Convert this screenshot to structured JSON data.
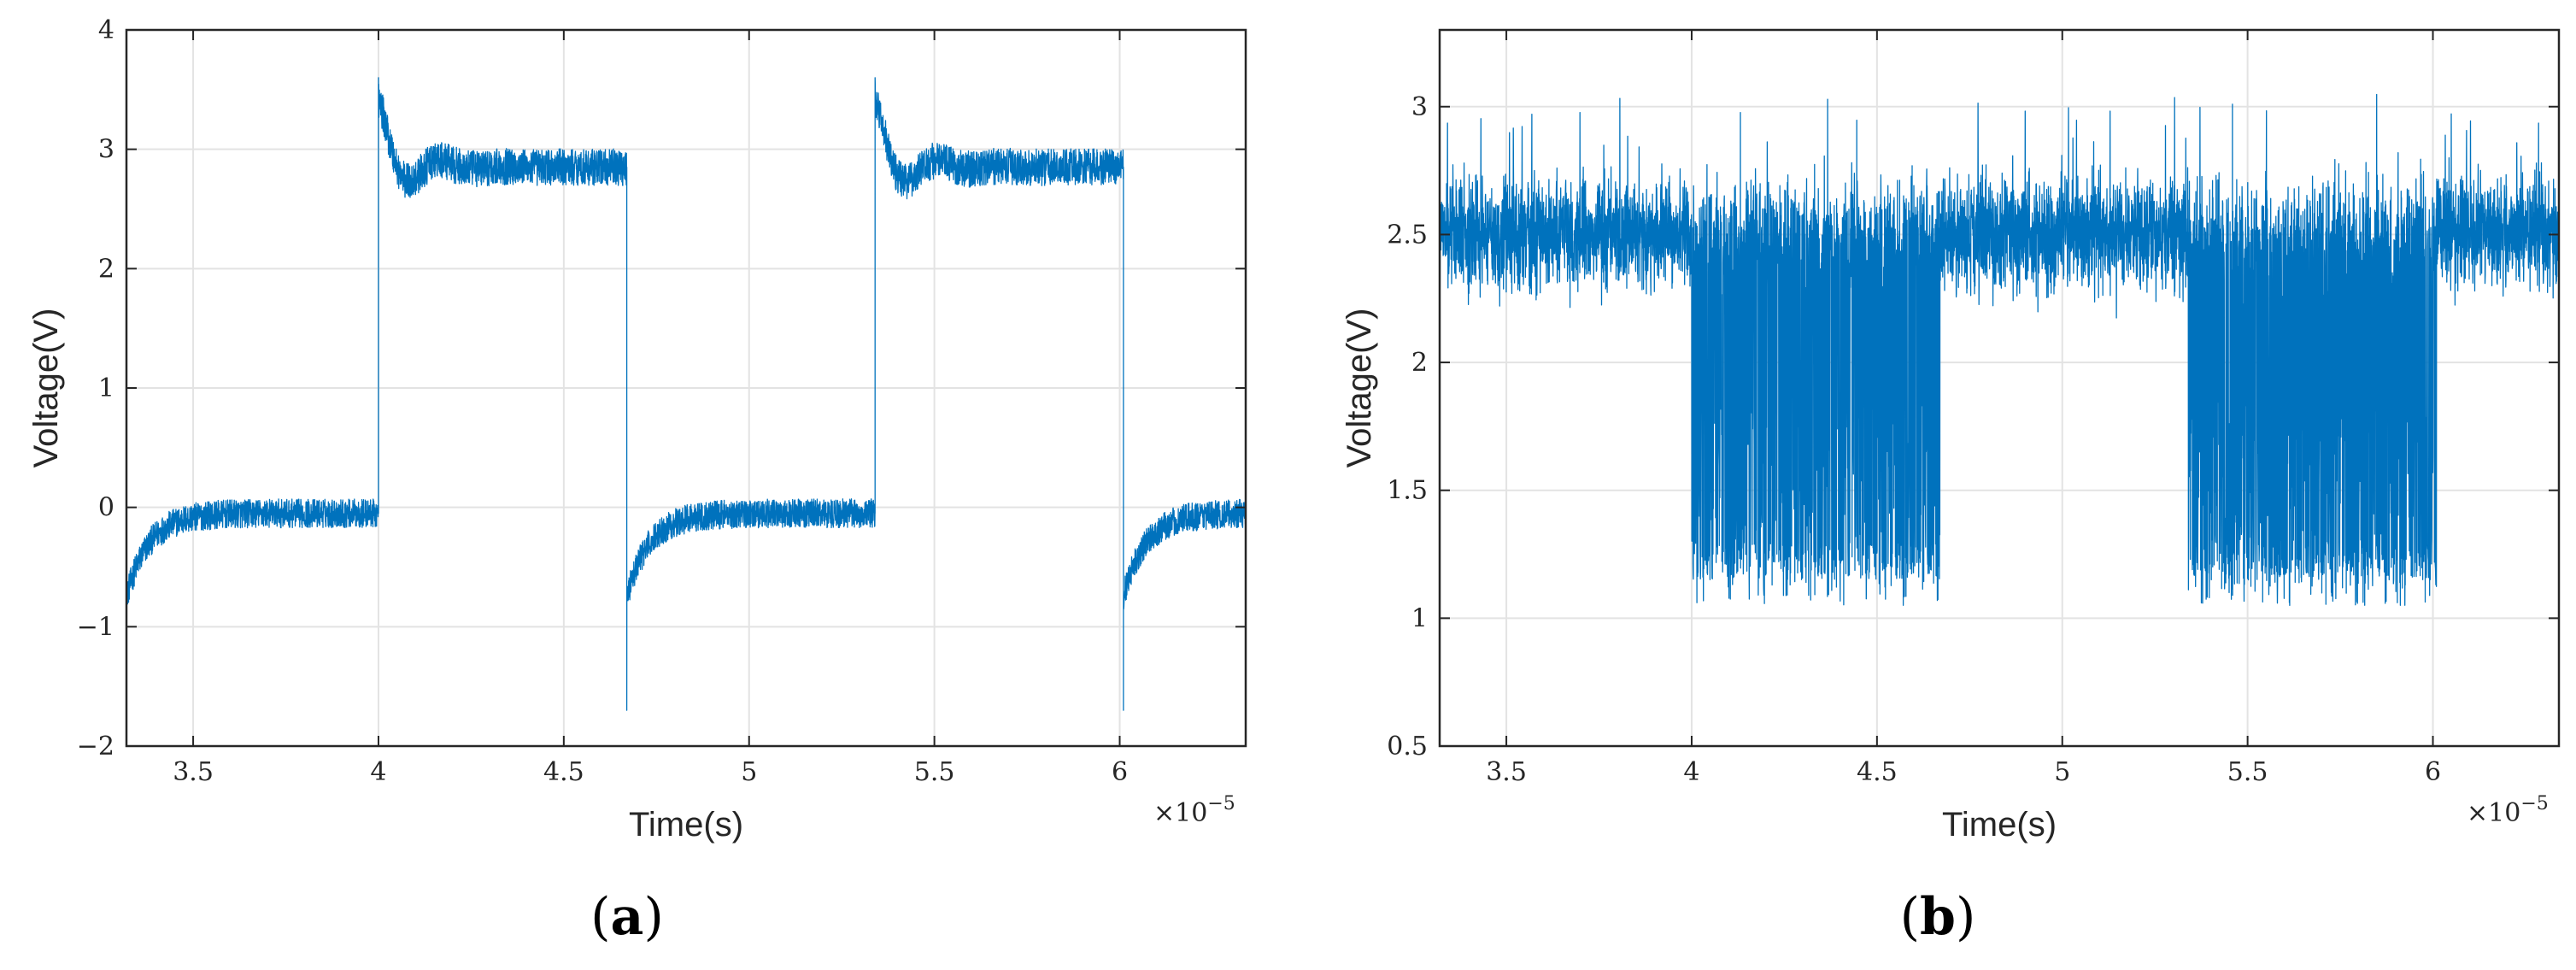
{
  "colors": {
    "trace": "#0072BD",
    "grid": "#e3e3e3",
    "axis": "#262626",
    "background": "#ffffff"
  },
  "chart_data": [
    {
      "id": "a",
      "type": "line",
      "panel_label": "a",
      "xlabel": "Time(s)",
      "ylabel": "Voltage(V)",
      "x_exponent": "−5",
      "x_multiplier_prefix": "×10",
      "xlim": [
        3.32,
        6.34
      ],
      "ylim": [
        -2,
        4
      ],
      "xticks": [
        3.5,
        4,
        4.5,
        5,
        5.5,
        6
      ],
      "xtick_labels": [
        "3.5",
        "4",
        "4.5",
        "5",
        "5.5",
        "6"
      ],
      "yticks": [
        -2,
        -1,
        0,
        1,
        2,
        3,
        4
      ],
      "ytick_labels": [
        "−2",
        "−1",
        "0",
        "1",
        "2",
        "3",
        "4"
      ],
      "grid": true,
      "series": [
        {
          "name": "Voltage",
          "waveform": "square",
          "low_level": -0.05,
          "high_level": 2.85,
          "rising_edges": [
            4.0,
            5.34
          ],
          "falling_edges": [
            4.67,
            6.01
          ],
          "undershoot_min": -1.7,
          "overshoot_max": 3.6,
          "noise_band": 0.22
        }
      ]
    },
    {
      "id": "b",
      "type": "line",
      "panel_label": "b",
      "xlabel": "Time(s)",
      "ylabel": "Voltage(V)",
      "x_exponent": "−5",
      "x_multiplier_prefix": "×10",
      "xlim": [
        3.32,
        6.34
      ],
      "ylim": [
        0.5,
        3.3
      ],
      "xticks": [
        3.5,
        4,
        4.5,
        5,
        5.5,
        6
      ],
      "xtick_labels": [
        "3.5",
        "4",
        "4.5",
        "5",
        "5.5",
        "6"
      ],
      "yticks": [
        0.5,
        1,
        1.5,
        2,
        2.5,
        3
      ],
      "ytick_labels": [
        "0.5",
        "1",
        "1.5",
        "2",
        "2.5",
        "3"
      ],
      "grid": true,
      "series": [
        {
          "name": "Voltage",
          "waveform": "noisy-baseline-with-dropout-bursts",
          "baseline": 2.5,
          "band_half_width": 0.2,
          "spike_max": 3.05,
          "burst_intervals": [
            [
              4.0,
              4.67
            ],
            [
              5.34,
              6.01
            ]
          ],
          "burst_min": 1.05,
          "burst_typical_low": 1.15
        }
      ]
    }
  ]
}
